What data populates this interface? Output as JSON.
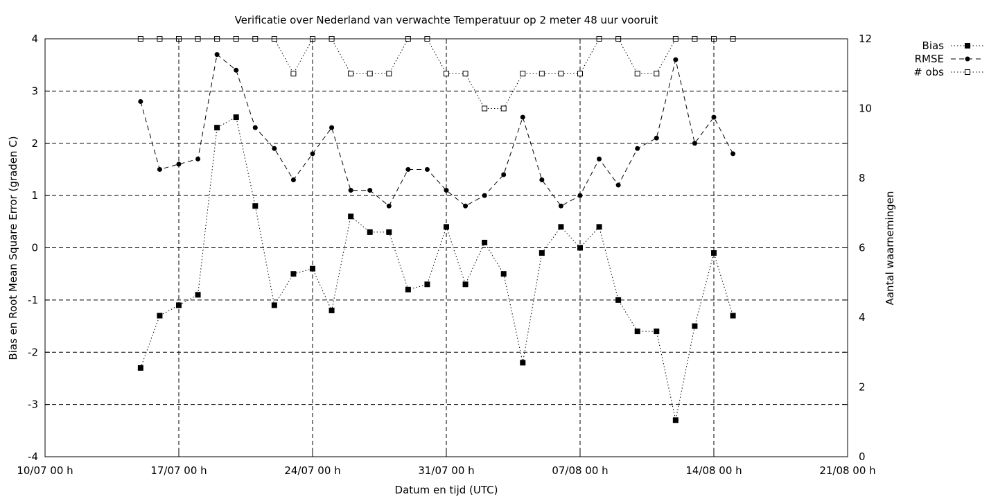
{
  "chart_data": {
    "type": "line",
    "title": "Verificatie over Nederland van verwachte Temperatuur op 2 meter 48 uur vooruit",
    "xlabel": "Datum en tijd (UTC)",
    "ylabel": "Bias en Root Mean Square Error (graden C)",
    "y2label": "Aantal waarnemingen",
    "xlim": [
      "2023-07-10 00:00",
      "2023-08-21 00:00"
    ],
    "x_tick_labels": [
      "10/07 00 h",
      "17/07 00 h",
      "24/07 00 h",
      "31/07 00 h",
      "07/08 00 h",
      "14/08 00 h",
      "21/08 00 h"
    ],
    "ylim": [
      -4,
      4
    ],
    "y_ticks": [
      "-4",
      "-3",
      "-2",
      "-1",
      "0",
      "1",
      "2",
      "3",
      "4"
    ],
    "y2lim": [
      0,
      12
    ],
    "y2_ticks": [
      "0",
      "2",
      "4",
      "6",
      "8",
      "10",
      "12"
    ],
    "grid": true,
    "legend_position": "top-right",
    "x": [
      "15/07",
      "16/07",
      "17/07",
      "18/07",
      "19/07",
      "20/07",
      "21/07",
      "22/07",
      "23/07",
      "24/07",
      "25/07",
      "26/07",
      "27/07",
      "28/07",
      "29/07",
      "30/07",
      "31/07",
      "01/08",
      "02/08",
      "03/08",
      "04/08",
      "05/08",
      "06/08",
      "07/08",
      "08/08",
      "09/08",
      "10/08",
      "11/08",
      "12/08",
      "13/08",
      "14/08",
      "15/08",
      "16/08"
    ],
    "series": [
      {
        "name": "Bias",
        "axis": "y",
        "style": "dotted",
        "marker": "filled-square",
        "values": [
          -2.3,
          -1.3,
          -1.1,
          -0.9,
          2.3,
          2.5,
          0.8,
          -1.1,
          -0.5,
          -0.4,
          -1.2,
          0.6,
          0.3,
          0.3,
          -0.8,
          -0.7,
          0.4,
          -0.7,
          0.1,
          -0.5,
          -2.2,
          -0.1,
          0.4,
          0.0,
          0.4,
          -1.0,
          -1.6,
          -1.6,
          -3.3,
          -1.5,
          -0.1,
          -1.3,
          null
        ]
      },
      {
        "name": "RMSE",
        "axis": "y",
        "style": "dashed",
        "marker": "filled-circle",
        "values": [
          2.8,
          1.5,
          1.6,
          1.7,
          3.7,
          3.4,
          2.3,
          1.9,
          1.3,
          1.8,
          2.3,
          1.1,
          1.1,
          0.8,
          1.5,
          1.5,
          1.1,
          0.8,
          1.0,
          1.4,
          2.5,
          1.3,
          0.8,
          1.0,
          1.7,
          1.2,
          1.9,
          2.1,
          3.6,
          2.0,
          2.5,
          1.8,
          null
        ]
      },
      {
        "name": "# obs",
        "axis": "y2",
        "style": "dotted",
        "marker": "open-square",
        "values": [
          12,
          12,
          12,
          12,
          12,
          12,
          12,
          12,
          11,
          12,
          12,
          11,
          11,
          11,
          12,
          12,
          11,
          11,
          10,
          10,
          11,
          11,
          11,
          11,
          12,
          12,
          11,
          11,
          12,
          12,
          12,
          12,
          null
        ]
      }
    ]
  }
}
